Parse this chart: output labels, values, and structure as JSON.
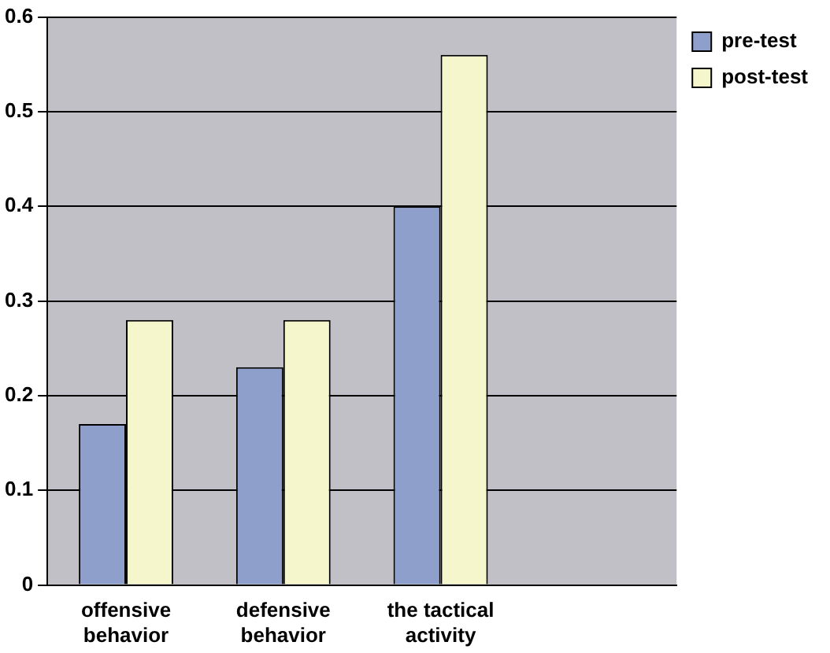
{
  "chart_data": {
    "type": "bar",
    "categories": [
      "offensive behavior",
      "defensive behavior",
      "the tactical activity",
      null
    ],
    "series": [
      {
        "name": "pre-test",
        "color": "#8f9fcb",
        "values": [
          0.17,
          0.23,
          0.4,
          null
        ]
      },
      {
        "name": "post-test",
        "color": "#f6f6cc",
        "values": [
          0.28,
          0.28,
          0.56,
          null
        ]
      }
    ],
    "ylim": [
      0,
      0.6
    ],
    "yticks": [
      0,
      0.1,
      0.2,
      0.3,
      0.4,
      0.5,
      0.6
    ],
    "grid": "y",
    "legend": "top right"
  }
}
